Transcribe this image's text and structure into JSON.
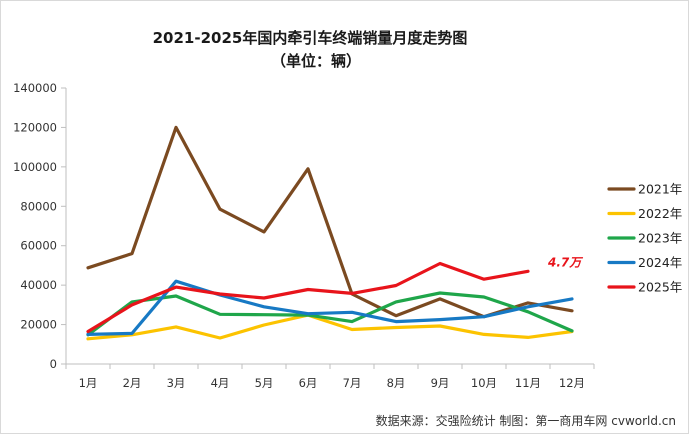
{
  "chart_data": {
    "type": "line",
    "title": "2021-2025年国内牵引车终端销量月度走势图",
    "subtitle": "（单位：辆）",
    "categories": [
      "1月",
      "2月",
      "3月",
      "4月",
      "5月",
      "6月",
      "7月",
      "8月",
      "9月",
      "10月",
      "11月",
      "12月"
    ],
    "ylim": [
      0,
      140000
    ],
    "yticks": [
      0,
      20000,
      40000,
      60000,
      80000,
      100000,
      120000,
      140000
    ],
    "ytick_labels": [
      "0",
      "20000",
      "40000",
      "60000",
      "80000",
      "100000",
      "120000",
      "140000"
    ],
    "grid": false,
    "legend_position": "right",
    "series": [
      {
        "name": "2021年",
        "color": "#7b4a21",
        "values": [
          48800,
          56000,
          120000,
          78500,
          67000,
          99000,
          35500,
          24500,
          33000,
          24000,
          31000,
          27000
        ]
      },
      {
        "name": "2022年",
        "color": "#fcc300",
        "values": [
          12800,
          14800,
          18800,
          13200,
          19800,
          24800,
          17500,
          18500,
          19300,
          15000,
          13500,
          16500
        ]
      },
      {
        "name": "2023年",
        "color": "#1fa64a",
        "values": [
          14800,
          31500,
          34500,
          25200,
          25000,
          24800,
          21500,
          31500,
          36000,
          34000,
          26500,
          16800
        ]
      },
      {
        "name": "2024年",
        "color": "#1779c4",
        "values": [
          15000,
          15500,
          42000,
          35000,
          29000,
          25500,
          26200,
          21500,
          22500,
          24000,
          29000,
          33000
        ]
      },
      {
        "name": "2025年",
        "color": "#e8141b",
        "values": [
          16500,
          30000,
          39000,
          35500,
          33500,
          37800,
          35800,
          39800,
          51000,
          43000,
          47000,
          null
        ]
      }
    ],
    "annotations": [
      {
        "text": "4.7万",
        "series": "2025年",
        "category": "11月"
      }
    ]
  },
  "source_note": "数据来源：交强险统计   制图：第一商用车网 cvworld.cn"
}
